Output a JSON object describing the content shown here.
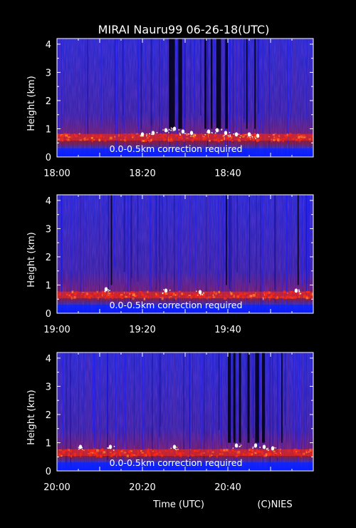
{
  "title": "MIRAI Nauru99 06-26-18(UTC)",
  "footer": {
    "xlabel": "Time (UTC)",
    "credit": "(C)NIES"
  },
  "colors": {
    "background": "#000000",
    "field": "#3a2aa6",
    "cloud": "#ff2a10",
    "peak": "#ffffff",
    "surface": "#0a20ff",
    "text": "#ffffff"
  },
  "chart_data": [
    {
      "type": "heatmap",
      "ylabel": "Height (km)",
      "ylim": [
        0,
        4.2
      ],
      "y_ticks": [
        "0",
        "1",
        "2",
        "3",
        "4"
      ],
      "xlim_minutes": [
        0,
        60
      ],
      "x_ticks": [
        {
          "label": "18:00",
          "min": 0
        },
        {
          "label": "18:20",
          "min": 20
        },
        {
          "label": "18:40",
          "min": 40
        }
      ],
      "annotation": "0.0-0.5km correction required",
      "cloud_base_km": 0.7,
      "dark_gaps_min": [
        [
          26.2,
          27.6
        ],
        [
          28.4,
          29.3
        ],
        [
          34.5,
          35.0
        ],
        [
          36.0,
          36.4
        ],
        [
          37.3,
          38.4
        ],
        [
          39.4,
          40.0
        ],
        [
          44.3,
          44.6
        ],
        [
          46.2,
          46.5
        ]
      ],
      "cloud_tops": [
        {
          "min": 20,
          "km": 0.8
        },
        {
          "min": 22.5,
          "km": 0.85
        },
        {
          "min": 25.5,
          "km": 0.95
        },
        {
          "min": 27.5,
          "km": 1.0
        },
        {
          "min": 29.5,
          "km": 0.9
        },
        {
          "min": 31.5,
          "km": 0.85
        },
        {
          "min": 35.5,
          "km": 0.9
        },
        {
          "min": 37.5,
          "km": 0.95
        },
        {
          "min": 39.5,
          "km": 0.85
        },
        {
          "min": 42,
          "km": 0.8
        },
        {
          "min": 45,
          "km": 0.8
        },
        {
          "min": 47,
          "km": 0.75
        }
      ]
    },
    {
      "type": "heatmap",
      "ylabel": "Height (km)",
      "ylim": [
        0,
        4.2
      ],
      "y_ticks": [
        "0",
        "1",
        "2",
        "3",
        "4"
      ],
      "xlim_minutes": [
        0,
        60
      ],
      "x_ticks": [
        {
          "label": "19:00",
          "min": 0
        },
        {
          "label": "19:20",
          "min": 20
        },
        {
          "label": "19:40",
          "min": 40
        }
      ],
      "annotation": "0.0-0.5km correction required",
      "cloud_base_km": 0.65,
      "dark_gaps_min": [
        [
          12.6,
          12.9
        ],
        [
          39.5,
          39.8
        ],
        [
          56.3,
          56.6
        ]
      ],
      "cloud_tops": [
        {
          "min": 11.5,
          "km": 0.85
        },
        {
          "min": 25.5,
          "km": 0.8
        },
        {
          "min": 33.5,
          "km": 0.75
        },
        {
          "min": 56,
          "km": 0.8
        }
      ]
    },
    {
      "type": "heatmap",
      "ylabel": "Height (km)",
      "ylim": [
        0,
        4.2
      ],
      "y_ticks": [
        "0",
        "1",
        "2",
        "3",
        "4"
      ],
      "xlim_minutes": [
        0,
        60
      ],
      "x_ticks": [
        {
          "label": "20:00",
          "min": 0
        },
        {
          "label": "20:20",
          "min": 20
        },
        {
          "label": "20:40",
          "min": 40
        }
      ],
      "annotation": "0.0-0.5km correction required",
      "cloud_base_km": 0.65,
      "dark_gaps_min": [
        [
          40.0,
          40.7
        ],
        [
          41.3,
          41.8
        ],
        [
          42.6,
          43.1
        ],
        [
          44.6,
          45.1
        ],
        [
          46.4,
          47.3
        ],
        [
          48.0,
          48.7
        ],
        [
          52.5,
          52.8
        ]
      ],
      "cloud_tops": [
        {
          "min": 5.5,
          "km": 0.85
        },
        {
          "min": 12.5,
          "km": 0.85
        },
        {
          "min": 27.5,
          "km": 0.85
        },
        {
          "min": 42,
          "km": 0.9
        },
        {
          "min": 46.5,
          "km": 0.9
        },
        {
          "min": 48.5,
          "km": 0.85
        },
        {
          "min": 50.5,
          "km": 0.8
        }
      ]
    }
  ]
}
